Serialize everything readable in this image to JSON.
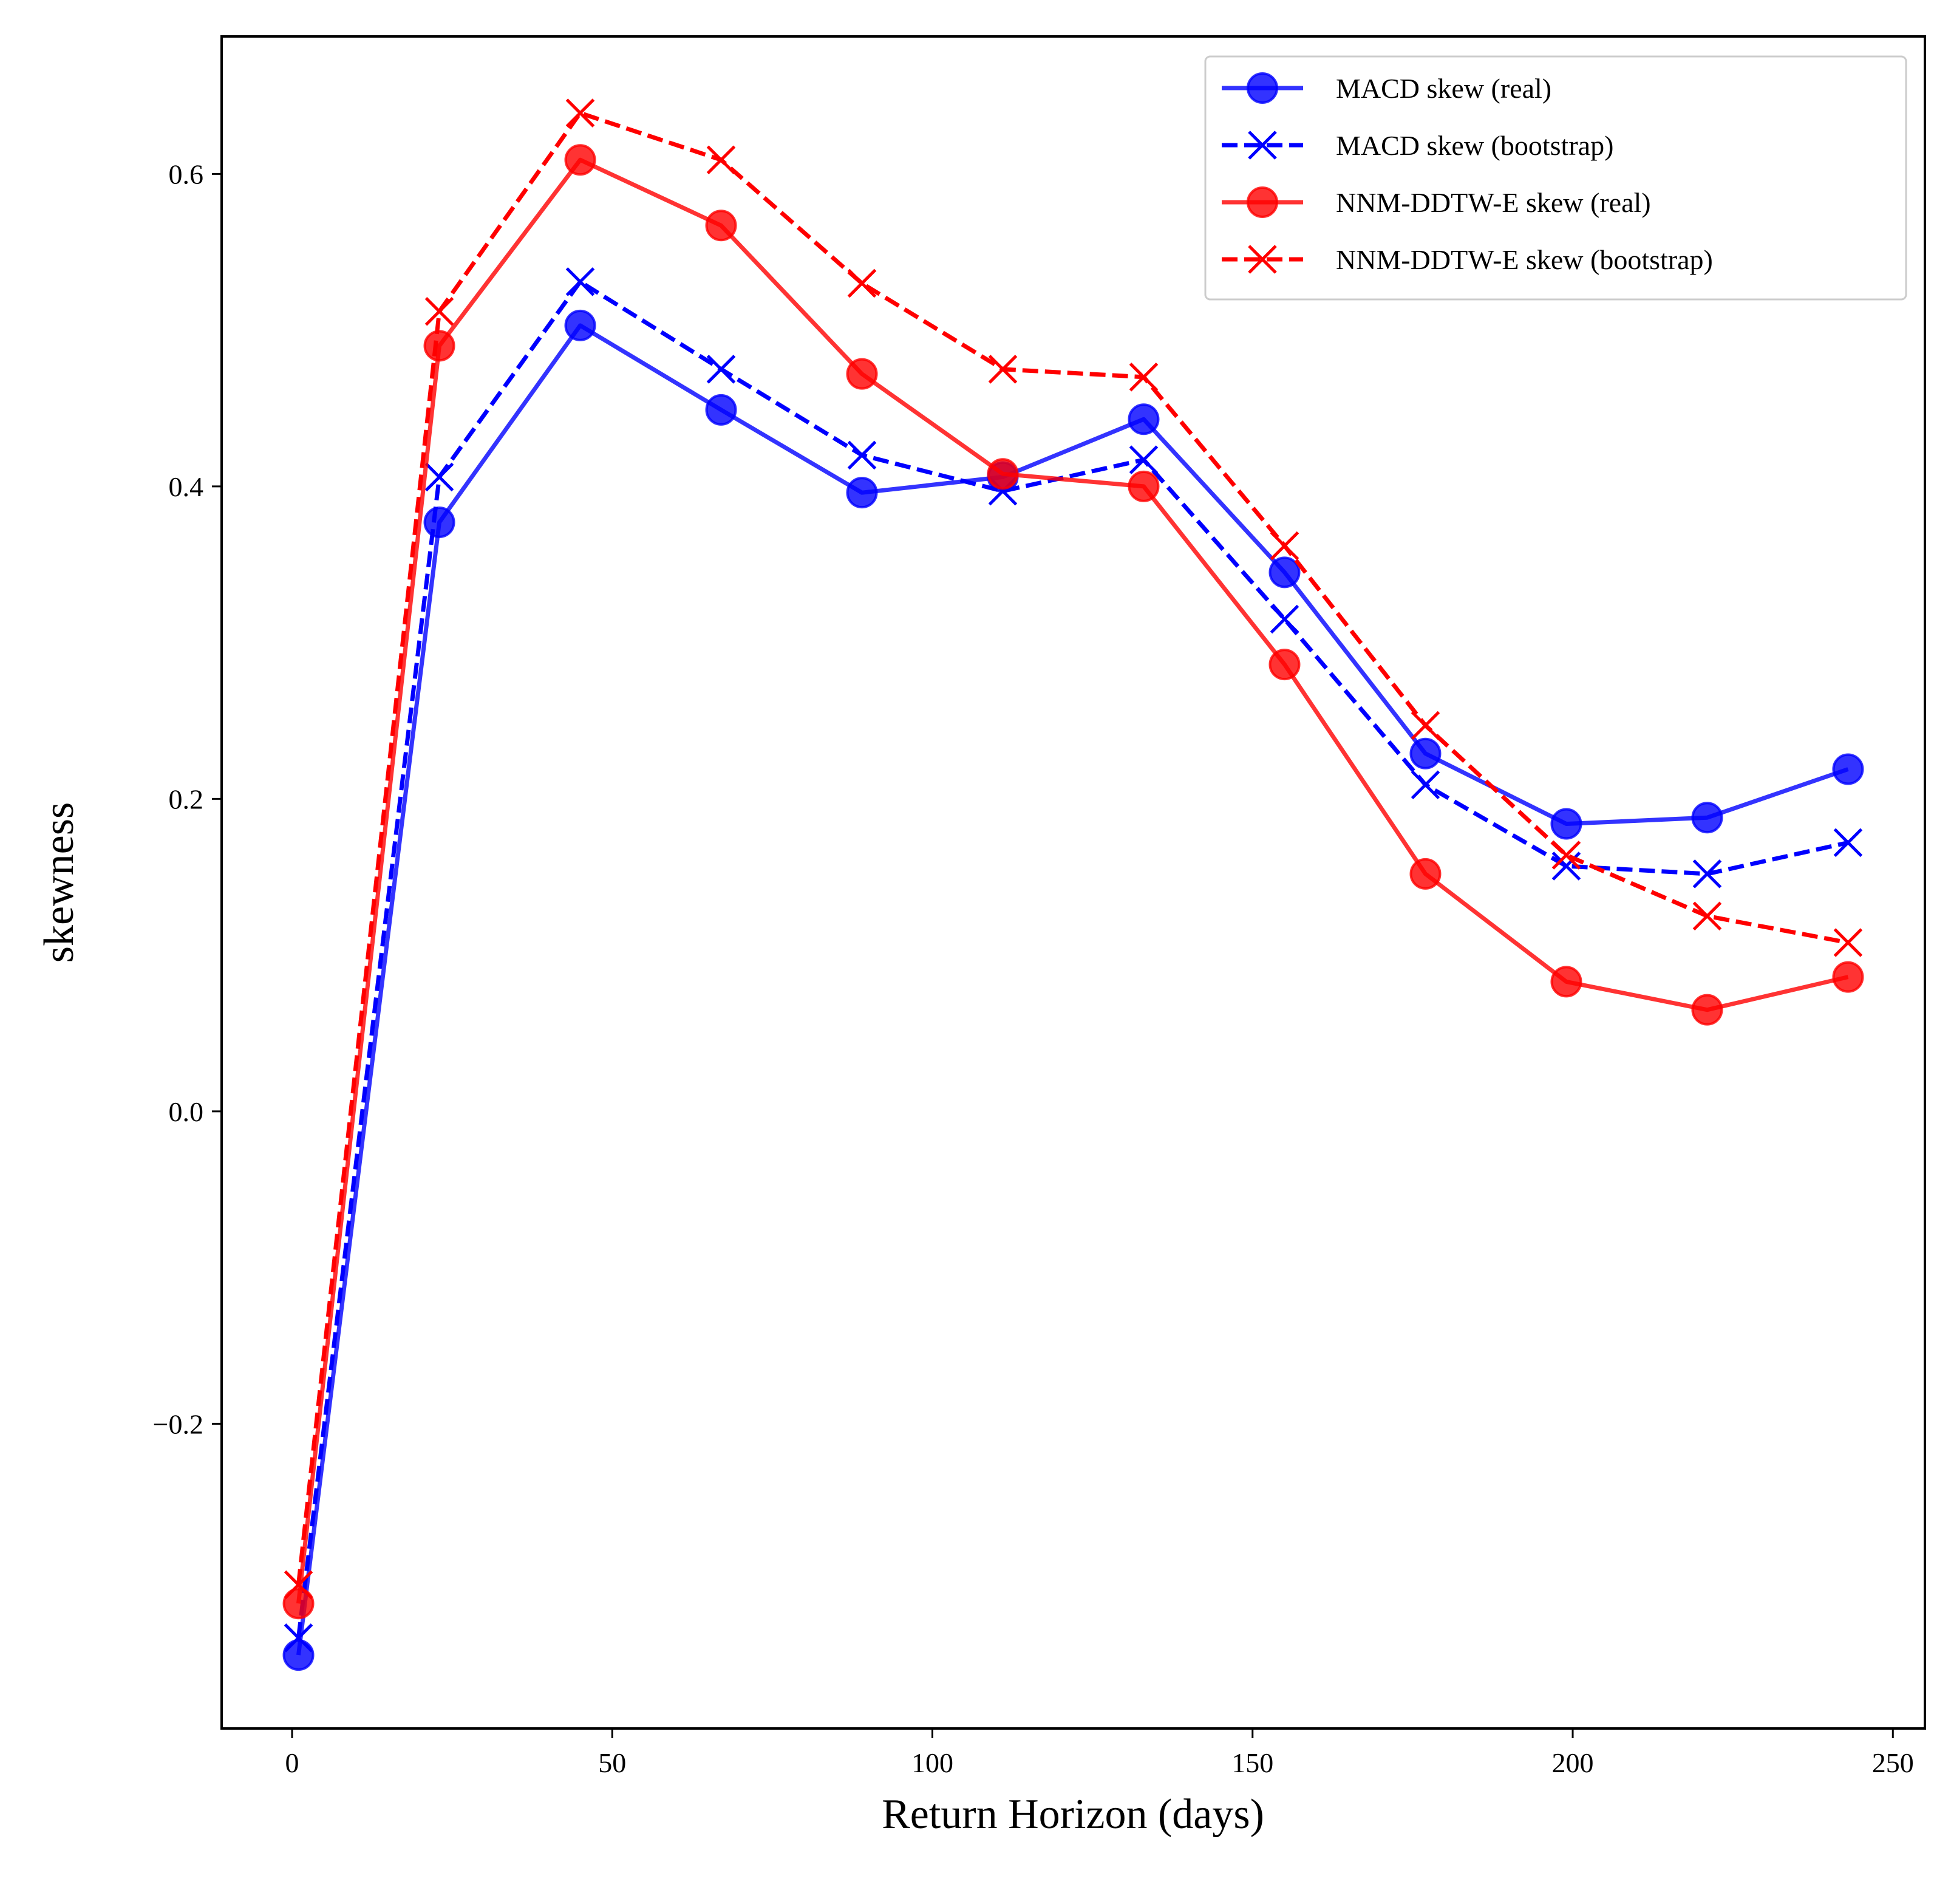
{
  "chart_data": {
    "type": "line",
    "title": "",
    "xlabel": "Return Horizon (days)",
    "ylabel": "skewness",
    "xlim": [
      -11,
      255
    ],
    "ylim": [
      -0.395,
      0.688
    ],
    "xticks": [
      0,
      50,
      100,
      150,
      200,
      250
    ],
    "xtick_labels": [
      "0",
      "50",
      "100",
      "150",
      "200",
      "250"
    ],
    "yticks": [
      -0.2,
      0.0,
      0.2,
      0.4,
      0.6
    ],
    "ytick_labels": [
      "−0.2",
      "0.0",
      "0.2",
      "0.4",
      "0.6"
    ],
    "grid": false,
    "legend_position": "top-right",
    "x": [
      1,
      23,
      45,
      67,
      89,
      111,
      133,
      155,
      177,
      199,
      221,
      243
    ],
    "series": [
      {
        "name": "MACD skew (real)",
        "color": "#0000ff",
        "linestyle": "solid",
        "marker": "circle",
        "values": [
          -0.348,
          0.377,
          0.503,
          0.449,
          0.396,
          0.406,
          0.443,
          0.345,
          0.229,
          0.184,
          0.188,
          0.219
        ]
      },
      {
        "name": "MACD skew (bootstrap)",
        "color": "#0000ff",
        "linestyle": "dashed",
        "marker": "x",
        "values": [
          -0.337,
          0.406,
          0.531,
          0.475,
          0.42,
          0.397,
          0.417,
          0.315,
          0.209,
          0.157,
          0.152,
          0.172
        ]
      },
      {
        "name": "NNM-DDTW-E skew (real)",
        "color": "#ff0000",
        "linestyle": "solid",
        "marker": "circle",
        "values": [
          -0.315,
          0.49,
          0.609,
          0.567,
          0.472,
          0.408,
          0.4,
          0.286,
          0.152,
          0.083,
          0.065,
          0.086
        ]
      },
      {
        "name": "NNM-DDTW-E skew (bootstrap)",
        "color": "#ff0000",
        "linestyle": "dashed",
        "marker": "x",
        "values": [
          -0.303,
          0.512,
          0.639,
          0.609,
          0.53,
          0.475,
          0.47,
          0.362,
          0.247,
          0.164,
          0.125,
          0.108
        ]
      }
    ]
  }
}
